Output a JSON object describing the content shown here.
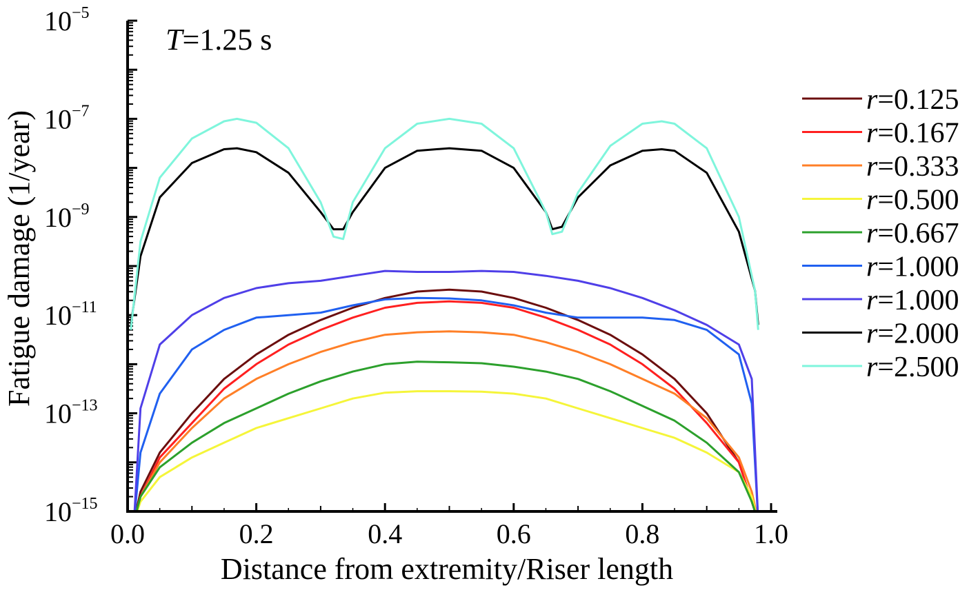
{
  "chart_data": {
    "type": "line",
    "annotation": {
      "symbol": "T",
      "text": "=1.25 s"
    },
    "xlabel": "Distance from extremity/Riser length",
    "ylabel": "Fatigue damage (1/year)",
    "xlim": [
      0.0,
      1.0
    ],
    "ylim_exponent": [
      -15,
      -5
    ],
    "yscale": "log",
    "x_ticks": [
      "0.0",
      "0.2",
      "0.4",
      "0.6",
      "0.8",
      "1.0"
    ],
    "y_ticks": [
      {
        "base": "10",
        "exp": "−15"
      },
      {
        "base": "10",
        "exp": "−13"
      },
      {
        "base": "10",
        "exp": "−11"
      },
      {
        "base": "10",
        "exp": "−9"
      },
      {
        "base": "10",
        "exp": "−7"
      },
      {
        "base": "10",
        "exp": "−5"
      }
    ],
    "legend_position": "right",
    "series": [
      {
        "name": "=0.125",
        "symbol": "r",
        "color": "#6b0e0e",
        "x": [
          0.01,
          0.02,
          0.05,
          0.1,
          0.15,
          0.2,
          0.25,
          0.3,
          0.35,
          0.4,
          0.45,
          0.5,
          0.55,
          0.6,
          0.65,
          0.7,
          0.75,
          0.8,
          0.85,
          0.9,
          0.95,
          0.97,
          0.98
        ],
        "y": [
          -15.2,
          -14.6,
          -13.8,
          -13.0,
          -12.3,
          -11.8,
          -11.4,
          -11.1,
          -10.85,
          -10.65,
          -10.52,
          -10.48,
          -10.52,
          -10.65,
          -10.85,
          -11.1,
          -11.4,
          -11.8,
          -12.3,
          -13.0,
          -14.0,
          -14.8,
          -15.2
        ]
      },
      {
        "name": "=0.167",
        "symbol": "r",
        "color": "#ff2020",
        "x": [
          0.01,
          0.02,
          0.05,
          0.1,
          0.15,
          0.2,
          0.25,
          0.3,
          0.35,
          0.4,
          0.45,
          0.5,
          0.55,
          0.6,
          0.65,
          0.7,
          0.75,
          0.8,
          0.85,
          0.9,
          0.95,
          0.97,
          0.98
        ],
        "y": [
          -15.2,
          -14.7,
          -13.9,
          -13.2,
          -12.5,
          -12.0,
          -11.6,
          -11.3,
          -11.05,
          -10.85,
          -10.75,
          -10.72,
          -10.75,
          -10.85,
          -11.05,
          -11.3,
          -11.6,
          -12.0,
          -12.5,
          -13.2,
          -14.0,
          -14.8,
          -15.2
        ]
      },
      {
        "name": "=0.333",
        "symbol": "r",
        "color": "#ff7f27",
        "x": [
          0.01,
          0.02,
          0.05,
          0.1,
          0.15,
          0.2,
          0.25,
          0.3,
          0.35,
          0.4,
          0.45,
          0.5,
          0.55,
          0.6,
          0.65,
          0.7,
          0.75,
          0.8,
          0.85,
          0.9,
          0.95,
          0.97,
          0.98
        ],
        "y": [
          -15.2,
          -14.7,
          -14.0,
          -13.3,
          -12.7,
          -12.3,
          -12.0,
          -11.75,
          -11.55,
          -11.4,
          -11.35,
          -11.33,
          -11.35,
          -11.4,
          -11.55,
          -11.75,
          -12.0,
          -12.3,
          -12.6,
          -13.1,
          -13.9,
          -14.6,
          -15.2
        ]
      },
      {
        "name": "=0.500",
        "symbol": "r",
        "color": "#f5f53a",
        "x": [
          0.01,
          0.02,
          0.05,
          0.1,
          0.15,
          0.2,
          0.25,
          0.3,
          0.35,
          0.4,
          0.45,
          0.5,
          0.55,
          0.6,
          0.65,
          0.7,
          0.75,
          0.8,
          0.85,
          0.9,
          0.95,
          0.97,
          0.98
        ],
        "y": [
          -15.2,
          -14.8,
          -14.3,
          -13.9,
          -13.6,
          -13.3,
          -13.1,
          -12.9,
          -12.7,
          -12.58,
          -12.55,
          -12.55,
          -12.56,
          -12.6,
          -12.7,
          -12.9,
          -13.1,
          -13.3,
          -13.5,
          -13.8,
          -14.2,
          -14.7,
          -15.2
        ]
      },
      {
        "name": "=0.667",
        "symbol": "r",
        "color": "#2ca02c",
        "x": [
          0.01,
          0.02,
          0.05,
          0.1,
          0.15,
          0.2,
          0.25,
          0.3,
          0.35,
          0.4,
          0.45,
          0.5,
          0.55,
          0.6,
          0.65,
          0.7,
          0.75,
          0.8,
          0.85,
          0.9,
          0.95,
          0.97,
          0.98
        ],
        "y": [
          -15.2,
          -14.7,
          -14.1,
          -13.6,
          -13.2,
          -12.9,
          -12.6,
          -12.35,
          -12.15,
          -12.0,
          -11.95,
          -11.96,
          -11.98,
          -12.05,
          -12.15,
          -12.3,
          -12.55,
          -12.85,
          -13.15,
          -13.6,
          -14.2,
          -14.8,
          -15.2
        ]
      },
      {
        "name": "=1.000",
        "symbol": "r",
        "color": "#2060f0",
        "x": [
          0.01,
          0.02,
          0.05,
          0.1,
          0.15,
          0.2,
          0.25,
          0.3,
          0.35,
          0.4,
          0.45,
          0.5,
          0.55,
          0.6,
          0.65,
          0.7,
          0.75,
          0.8,
          0.85,
          0.9,
          0.95,
          0.97,
          0.98
        ],
        "y": [
          -15.2,
          -13.8,
          -12.6,
          -11.7,
          -11.3,
          -11.05,
          -11.0,
          -10.95,
          -10.8,
          -10.68,
          -10.65,
          -10.66,
          -10.7,
          -10.8,
          -10.95,
          -11.05,
          -11.05,
          -11.05,
          -11.1,
          -11.3,
          -11.8,
          -12.8,
          -15.2
        ]
      },
      {
        "name": "=1.000",
        "symbol": "r",
        "color": "#4f3fe8",
        "x": [
          0.01,
          0.02,
          0.05,
          0.1,
          0.15,
          0.2,
          0.25,
          0.3,
          0.35,
          0.4,
          0.45,
          0.5,
          0.55,
          0.6,
          0.65,
          0.7,
          0.75,
          0.8,
          0.85,
          0.9,
          0.95,
          0.97,
          0.98
        ],
        "y": [
          -15.2,
          -12.9,
          -11.6,
          -11.0,
          -10.65,
          -10.45,
          -10.35,
          -10.3,
          -10.2,
          -10.1,
          -10.12,
          -10.12,
          -10.1,
          -10.12,
          -10.2,
          -10.3,
          -10.45,
          -10.65,
          -10.9,
          -11.2,
          -11.6,
          -12.3,
          -15.2
        ]
      },
      {
        "name": "=2.000",
        "symbol": "r",
        "color": "#000000",
        "x": [
          0.005,
          0.02,
          0.05,
          0.1,
          0.15,
          0.17,
          0.2,
          0.25,
          0.3,
          0.32,
          0.335,
          0.35,
          0.4,
          0.45,
          0.5,
          0.55,
          0.6,
          0.65,
          0.66,
          0.675,
          0.7,
          0.75,
          0.8,
          0.83,
          0.85,
          0.9,
          0.95,
          0.975,
          0.98
        ],
        "y": [
          -11.2,
          -9.8,
          -8.6,
          -7.9,
          -7.62,
          -7.6,
          -7.68,
          -8.1,
          -8.9,
          -9.25,
          -9.25,
          -8.9,
          -8.0,
          -7.65,
          -7.6,
          -7.65,
          -8.0,
          -8.9,
          -9.25,
          -9.2,
          -8.6,
          -7.95,
          -7.65,
          -7.62,
          -7.65,
          -8.1,
          -9.3,
          -10.5,
          -11.2
        ]
      },
      {
        "name": "=2.500",
        "symbol": "r",
        "color": "#7ff5dc",
        "x": [
          0.005,
          0.02,
          0.05,
          0.1,
          0.15,
          0.17,
          0.2,
          0.25,
          0.3,
          0.32,
          0.335,
          0.35,
          0.4,
          0.45,
          0.5,
          0.55,
          0.6,
          0.65,
          0.66,
          0.675,
          0.7,
          0.75,
          0.8,
          0.83,
          0.85,
          0.9,
          0.95,
          0.975,
          0.98
        ],
        "y": [
          -11.3,
          -9.5,
          -8.2,
          -7.4,
          -7.05,
          -7.0,
          -7.08,
          -7.6,
          -8.7,
          -9.4,
          -9.45,
          -8.7,
          -7.6,
          -7.1,
          -7.0,
          -7.1,
          -7.6,
          -8.9,
          -9.35,
          -9.3,
          -8.5,
          -7.55,
          -7.1,
          -7.05,
          -7.1,
          -7.6,
          -9.0,
          -10.5,
          -11.3
        ]
      }
    ]
  }
}
